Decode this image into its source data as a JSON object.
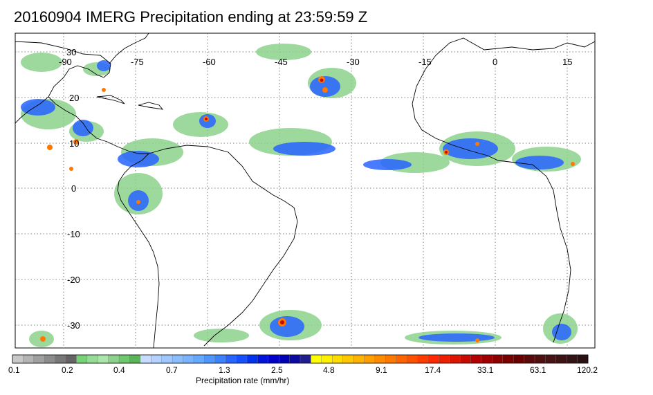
{
  "title": "20160904 IMERG Precipitation ending at 23:59:59 Z",
  "map": {
    "lon_labels": [
      "-90",
      "-75",
      "-60",
      "-45",
      "-30",
      "-15",
      "0",
      "15"
    ],
    "lat_labels": [
      "30",
      "20",
      "10",
      "0",
      "-10",
      "-20",
      "-30"
    ],
    "gridlines": "dotted",
    "land_fill": "white",
    "ocean_fill": "white",
    "coastline_color": "#000000"
  },
  "colorbar": {
    "title": "Precipitation rate (mm/hr)",
    "tick_labels": [
      "0.1",
      "0.2",
      "0.4",
      "0.7",
      "1.3",
      "2.5",
      "4.8",
      "9.1",
      "17.4",
      "33.1",
      "63.1",
      "120.2"
    ],
    "colors": [
      "#c8c8c8",
      "#b4b4b4",
      "#a0a0a0",
      "#8c8c8c",
      "#787878",
      "#646464",
      "#78d278",
      "#96dc96",
      "#aae6aa",
      "#8cd28c",
      "#6ec86e",
      "#5ab45a",
      "#c8dcff",
      "#b4d2ff",
      "#a0c8ff",
      "#8cbeff",
      "#78b4ff",
      "#64aaff",
      "#5096ff",
      "#3c82ff",
      "#2864ff",
      "#1450ff",
      "#0032f0",
      "#0014dc",
      "#0000c8",
      "#0000b4",
      "#0a0aa0",
      "#1e1e8c",
      "#ffff00",
      "#ffef00",
      "#ffdc00",
      "#ffc800",
      "#ffb400",
      "#ffa000",
      "#ff8c00",
      "#ff7800",
      "#ff6400",
      "#ff5000",
      "#ff3c00",
      "#ff2800",
      "#f01e00",
      "#dc1400",
      "#c80a00",
      "#b40000",
      "#a00000",
      "#8c0000",
      "#7a0000",
      "#680000",
      "#5a0a0a",
      "#501010",
      "#461414",
      "#3c1414",
      "#321414",
      "#2a1010"
    ]
  }
}
